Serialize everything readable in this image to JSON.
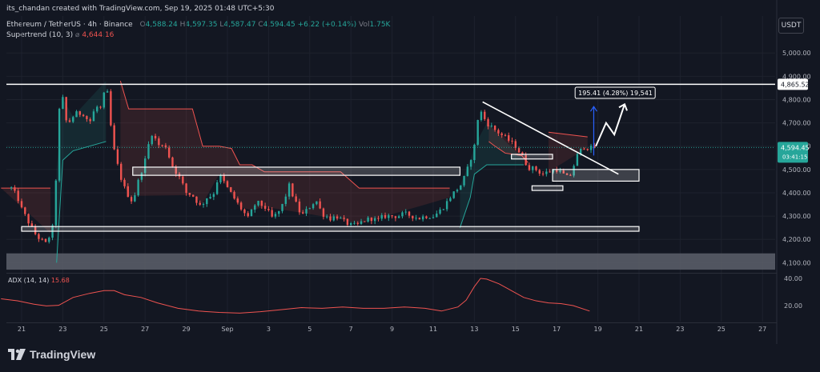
{
  "header": {
    "credit": "its_chandan created with TradingView.com, Sep 19, 2025 01:48 UTC+5:30",
    "symbol": "Ethereum / TetherUS · 4h · Binance",
    "o_label": "O",
    "o": "4,588.24",
    "h_label": "H",
    "h": "4,597.35",
    "l_label": "L",
    "l": "4,587.47",
    "c_label": "C",
    "c": "4,594.45",
    "change": "+6.22 (+0.14%)",
    "vol_label": "Vol",
    "vol": "1.75K",
    "supertrend_label": "Supertrend (10, 3)",
    "supertrend_symbol": "⌀",
    "supertrend_value": "4,644.16"
  },
  "currency_button": "USDT",
  "adx": {
    "label": "ADX (14, 14)",
    "value": "15.68",
    "ticks": [
      "40.00",
      "20.00"
    ]
  },
  "logo_text": "TradingView",
  "colors": {
    "up": "#26a69a",
    "down": "#ef5350",
    "bg": "#131722",
    "grid": "#1e222d"
  },
  "chart_data": {
    "type": "candlestick",
    "price_ticks": [
      "5,000.00",
      "4,900.00",
      "4,800.00",
      "4,700.00",
      "4,600.00",
      "4,500.00",
      "4,400.00",
      "4,300.00",
      "4,200.00",
      "4,100.00"
    ],
    "ylim": [
      4060,
      5090
    ],
    "date_ticks": [
      "21",
      "23",
      "25",
      "27",
      "29",
      "Sep",
      "3",
      "5",
      "7",
      "9",
      "11",
      "13",
      "15",
      "17",
      "19",
      "21",
      "23",
      "25",
      "27"
    ],
    "price_labels": [
      {
        "text": "4,865.52",
        "value": 4865.52,
        "style": "white"
      },
      {
        "text": "4,594.45",
        "sub": "03:41:15",
        "value": 4594.45,
        "style": "green"
      }
    ],
    "resistance_level": 4865.52,
    "measure_label": "195.41 (4.28%) 19,541",
    "candle_anchors": [
      [
        20.5,
        4420
      ],
      [
        20.8,
        4380
      ],
      [
        21.0,
        4330
      ],
      [
        21.3,
        4280
      ],
      [
        21.6,
        4230
      ],
      [
        21.9,
        4200
      ],
      [
        22.2,
        4180
      ],
      [
        22.5,
        4250
      ],
      [
        22.7,
        4500
      ],
      [
        22.8,
        4700
      ],
      [
        22.9,
        4860
      ],
      [
        23.2,
        4690
      ],
      [
        23.6,
        4740
      ],
      [
        24.0,
        4740
      ],
      [
        24.3,
        4700
      ],
      [
        24.6,
        4770
      ],
      [
        24.9,
        4760
      ],
      [
        25.1,
        4880
      ],
      [
        25.3,
        4720
      ],
      [
        25.4,
        4620
      ],
      [
        25.6,
        4540
      ],
      [
        25.9,
        4440
      ],
      [
        26.1,
        4400
      ],
      [
        26.4,
        4360
      ],
      [
        26.7,
        4460
      ],
      [
        27.0,
        4540
      ],
      [
        27.3,
        4660
      ],
      [
        27.7,
        4600
      ],
      [
        28.0,
        4600
      ],
      [
        28.3,
        4520
      ],
      [
        28.7,
        4460
      ],
      [
        29.0,
        4400
      ],
      [
        29.3,
        4390
      ],
      [
        29.7,
        4340
      ],
      [
        30.0,
        4380
      ],
      [
        30.3,
        4390
      ],
      [
        30.6,
        4480
      ],
      [
        31.0,
        4420
      ],
      [
        31.3,
        4380
      ],
      [
        31.6,
        4340
      ],
      [
        32.0,
        4290
      ],
      [
        32.4,
        4360
      ],
      [
        32.8,
        4340
      ],
      [
        33.2,
        4290
      ],
      [
        33.6,
        4330
      ],
      [
        34.0,
        4430
      ],
      [
        34.3,
        4360
      ],
      [
        34.6,
        4300
      ],
      [
        35.0,
        4340
      ],
      [
        35.3,
        4370
      ],
      [
        35.6,
        4310
      ],
      [
        36.0,
        4290
      ],
      [
        36.3,
        4300
      ],
      [
        36.6,
        4280
      ],
      [
        37.0,
        4260
      ],
      [
        37.3,
        4260
      ],
      [
        37.6,
        4280
      ],
      [
        38.0,
        4290
      ],
      [
        38.3,
        4280
      ],
      [
        38.6,
        4300
      ],
      [
        39.0,
        4300
      ],
      [
        39.3,
        4300
      ],
      [
        39.6,
        4310
      ],
      [
        40.0,
        4300
      ],
      [
        40.3,
        4290
      ],
      [
        40.6,
        4300
      ],
      [
        41.0,
        4300
      ],
      [
        41.3,
        4320
      ],
      [
        41.6,
        4350
      ],
      [
        41.8,
        4380
      ],
      [
        42.1,
        4410
      ],
      [
        42.4,
        4440
      ],
      [
        42.7,
        4510
      ],
      [
        43.0,
        4600
      ],
      [
        43.1,
        4700
      ],
      [
        43.3,
        4750
      ],
      [
        43.6,
        4700
      ],
      [
        44.0,
        4670
      ],
      [
        44.3,
        4650
      ],
      [
        44.6,
        4630
      ],
      [
        45.0,
        4600
      ],
      [
        45.3,
        4560
      ],
      [
        45.6,
        4510
      ],
      [
        46.0,
        4500
      ],
      [
        46.3,
        4480
      ],
      [
        46.6,
        4490
      ],
      [
        47.0,
        4500
      ],
      [
        47.3,
        4480
      ],
      [
        47.6,
        4460
      ],
      [
        47.8,
        4510
      ],
      [
        48.0,
        4560
      ],
      [
        48.3,
        4600
      ],
      [
        48.6,
        4590
      ],
      [
        48.9,
        4595
      ]
    ],
    "supertrend": {
      "red_segments": [
        [
          [
            20.0,
            4420
          ],
          [
            22.4,
            4420
          ]
        ],
        [
          [
            25.8,
            4880
          ],
          [
            26.2,
            4760
          ],
          [
            29.3,
            4760
          ],
          [
            29.8,
            4600
          ],
          [
            30.6,
            4600
          ],
          [
            31.2,
            4590
          ],
          [
            31.6,
            4520
          ],
          [
            32.2,
            4520
          ],
          [
            32.8,
            4490
          ],
          [
            36.5,
            4490
          ],
          [
            37.4,
            4420
          ],
          [
            41.8,
            4420
          ]
        ],
        [
          [
            43.7,
            4620
          ],
          [
            44.0,
            4600
          ],
          [
            44.5,
            4570
          ],
          [
            45.3,
            4560
          ],
          [
            45.6,
            4530
          ]
        ],
        [
          [
            46.6,
            4660
          ],
          [
            48.5,
            4640
          ]
        ]
      ],
      "green_segments": [
        [
          [
            22.7,
            4100
          ],
          [
            23.0,
            4540
          ],
          [
            23.5,
            4580
          ],
          [
            25.1,
            4620
          ]
        ],
        [
          [
            42.3,
            4250
          ],
          [
            42.8,
            4380
          ],
          [
            43.0,
            4480
          ],
          [
            43.6,
            4520
          ],
          [
            45.4,
            4520
          ]
        ]
      ]
    },
    "zones": [
      {
        "from": [
          26.4,
          4475
        ],
        "to": [
          42.3,
          4510
        ],
        "label": ""
      },
      {
        "from": [
          21.0,
          4235
        ],
        "to": [
          51.0,
          4255
        ],
        "label": ""
      },
      {
        "from": [
          44.8,
          4545
        ],
        "to": [
          46.8,
          4565
        ],
        "label": ""
      },
      {
        "from": [
          45.8,
          4410
        ],
        "to": [
          47.3,
          4430
        ],
        "label": ""
      },
      {
        "from": [
          46.8,
          4450
        ],
        "to": [
          51.0,
          4500
        ],
        "label": ""
      }
    ],
    "supply_band": [
      4070,
      4140
    ],
    "trendline": [
      [
        43.4,
        4790
      ],
      [
        50.0,
        4480
      ]
    ],
    "adx_values": [
      [
        20.0,
        25
      ],
      [
        20.8,
        23.5
      ],
      [
        21.6,
        21
      ],
      [
        22.2,
        19.8
      ],
      [
        22.8,
        20.2
      ],
      [
        23.5,
        26
      ],
      [
        24.3,
        29
      ],
      [
        25.0,
        31
      ],
      [
        25.5,
        31
      ],
      [
        26.0,
        28
      ],
      [
        26.8,
        26
      ],
      [
        27.6,
        22
      ],
      [
        28.6,
        18
      ],
      [
        29.6,
        16
      ],
      [
        30.6,
        15
      ],
      [
        31.6,
        14.5
      ],
      [
        32.6,
        15.5
      ],
      [
        33.6,
        17
      ],
      [
        34.6,
        18.5
      ],
      [
        35.6,
        18
      ],
      [
        36.6,
        19
      ],
      [
        37.6,
        18
      ],
      [
        38.6,
        18
      ],
      [
        39.6,
        19
      ],
      [
        40.6,
        18
      ],
      [
        41.4,
        16
      ],
      [
        42.2,
        19
      ],
      [
        42.6,
        24
      ],
      [
        43.0,
        34
      ],
      [
        43.3,
        40
      ],
      [
        43.6,
        39.5
      ],
      [
        44.2,
        36
      ],
      [
        44.8,
        31
      ],
      [
        45.4,
        26
      ],
      [
        46.0,
        23.5
      ],
      [
        46.6,
        22
      ],
      [
        47.2,
        21.5
      ],
      [
        47.8,
        20
      ],
      [
        48.6,
        16
      ]
    ]
  }
}
